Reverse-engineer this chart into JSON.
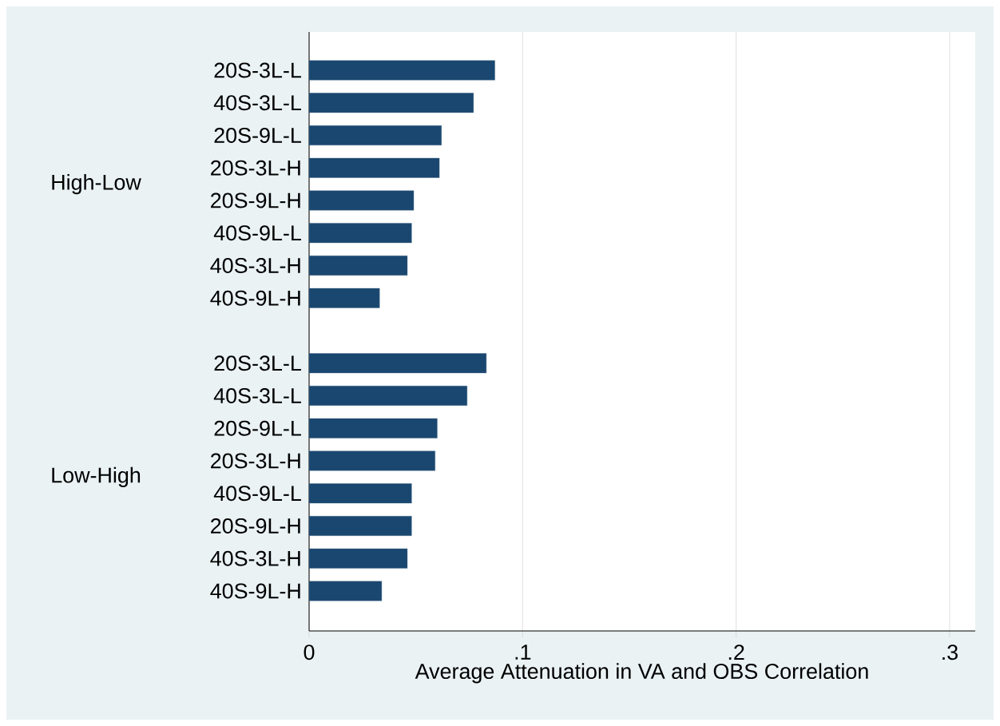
{
  "chart_data": {
    "type": "bar",
    "orientation": "horizontal",
    "categories": [
      "20S-3L-L",
      "40S-3L-L",
      "20S-9L-L",
      "20S-3L-H",
      "20S-9L-H",
      "40S-9L-L",
      "40S-3L-H",
      "40S-9L-H",
      null,
      "20S-3L-L",
      "40S-3L-L",
      "20S-9L-L",
      "20S-3L-H",
      "40S-9L-L",
      "20S-9L-H",
      "40S-3L-H",
      "40S-9L-H"
    ],
    "values": [
      0.087,
      0.077,
      0.062,
      0.061,
      0.049,
      0.048,
      0.046,
      0.033,
      null,
      0.083,
      0.074,
      0.06,
      0.059,
      0.048,
      0.048,
      0.046,
      0.034
    ],
    "color": "#1a476f",
    "xlim": [
      0,
      0.312
    ],
    "xticks": [
      0,
      {
        "value": 0.1,
        "label": ".1"
      },
      {
        "value": 0.2,
        "label": ".2"
      },
      {
        "value": 0.3,
        "label": ".3"
      }
    ],
    "xlabel": "Average Attenuation in VA and OBS Correlation",
    "annotations": [
      "High-Low",
      "Low-High"
    ],
    "grid": "x"
  }
}
